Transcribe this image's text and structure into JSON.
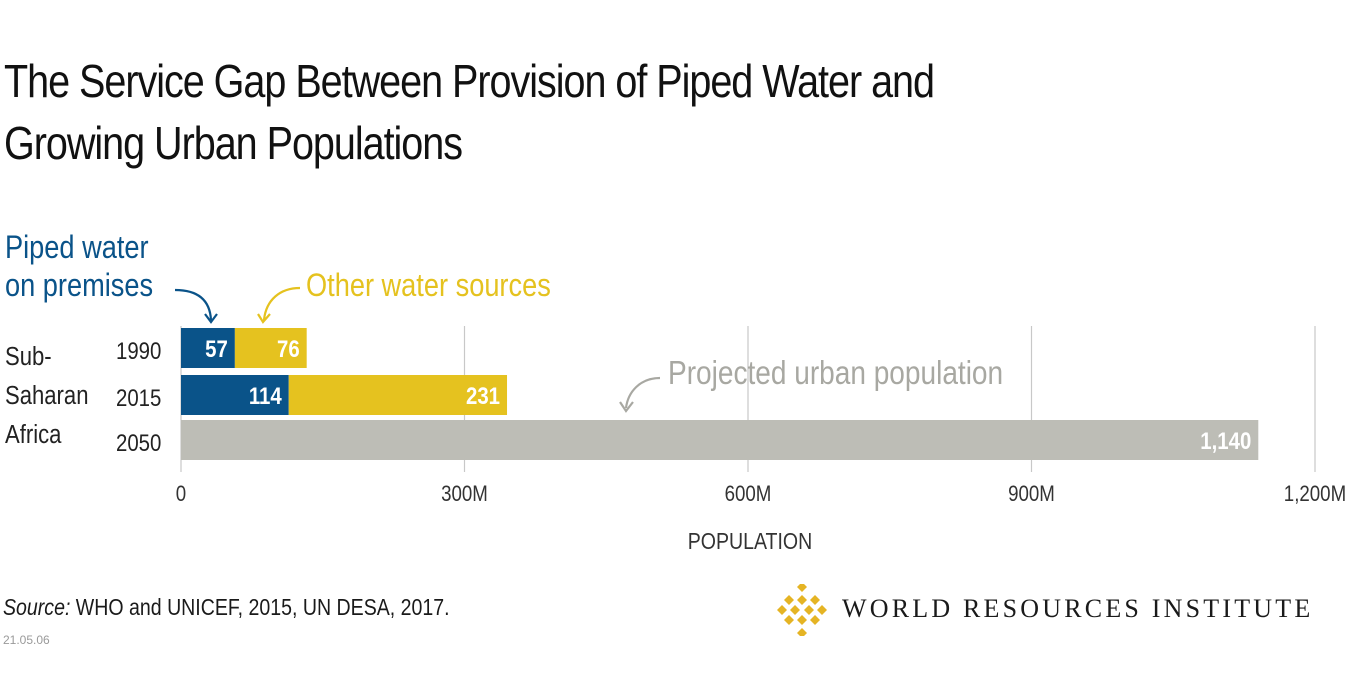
{
  "title_lines": [
    "The Service Gap Between Provision of Piped Water and",
    "Growing Urban Populations"
  ],
  "source_label": "Source:",
  "source_text": " WHO and UNICEF, 2015, UN DESA, 2017.",
  "date_code": "21.05.06",
  "logo_text": "WORLD RESOURCES INSTITUTE",
  "colors": {
    "piped": "#0a5389",
    "other": "#e5c21f",
    "projected": "#bdbdb6",
    "grid": "#c8c8c8",
    "axis_text": "#333333",
    "logo": "#e5b424"
  },
  "chart_data": {
    "type": "bar",
    "orientation": "horizontal",
    "stacked": true,
    "region_label": [
      "Sub-",
      "Saharan",
      "Africa"
    ],
    "categories": [
      "1990",
      "2015",
      "2050"
    ],
    "series": [
      {
        "name": "Piped water on premises",
        "name_lines": [
          "Piped water",
          "on premises"
        ],
        "values": [
          57,
          114,
          null
        ],
        "labels": [
          "57",
          "114",
          ""
        ]
      },
      {
        "name": "Other water sources",
        "name_lines": [
          "Other water sources"
        ],
        "values": [
          76,
          231,
          null
        ],
        "labels": [
          "76",
          "231",
          ""
        ]
      },
      {
        "name": "Projected urban population",
        "name_lines": [
          "Projected urban population"
        ],
        "values": [
          null,
          null,
          1140
        ],
        "labels": [
          "",
          "",
          "1,140"
        ]
      }
    ],
    "xlabel": "POPULATION",
    "xlim": [
      0,
      1200
    ],
    "xticks": [
      0,
      300,
      600,
      900,
      1200
    ],
    "xtick_labels": [
      "0",
      "300M",
      "600M",
      "900M",
      "1,200M"
    ],
    "grid": true
  }
}
